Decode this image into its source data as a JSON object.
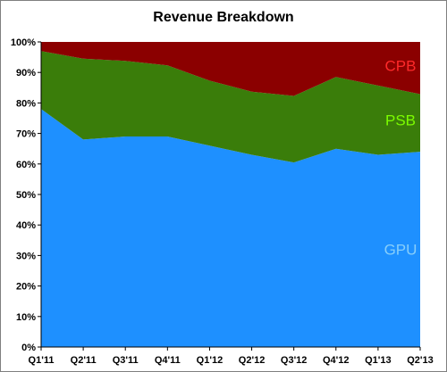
{
  "chart_data": {
    "type": "area",
    "stacked": "percent",
    "title": "Revenue Breakdown",
    "categories": [
      "Q1'11",
      "Q2'11",
      "Q3'11",
      "Q4'11",
      "Q1'12",
      "Q2'12",
      "Q3'12",
      "Q4'12",
      "Q1'13",
      "Q2'13"
    ],
    "series": [
      {
        "name": "GPU",
        "color": "#1e90ff",
        "label_color": "#87cefa",
        "values": [
          78,
          68,
          69,
          69,
          66,
          63,
          60.5,
          65,
          63,
          64
        ]
      },
      {
        "name": "PSB",
        "color": "#3a7d0a",
        "label_color": "#7cfc00",
        "values": [
          19,
          26.5,
          24.8,
          23.3,
          21.3,
          20.7,
          21.8,
          23.5,
          22.7,
          18.9
        ]
      },
      {
        "name": "CPB",
        "color": "#8b0000",
        "label_color": "#ff2a2a",
        "values": [
          3,
          5.5,
          6.2,
          7.7,
          12.7,
          16.3,
          17.7,
          11.5,
          14.3,
          17.1
        ]
      }
    ],
    "ylim": [
      0,
      100
    ],
    "yticks": [
      "0%",
      "10%",
      "20%",
      "30%",
      "40%",
      "50%",
      "60%",
      "70%",
      "80%",
      "90%",
      "100%"
    ],
    "grid": false,
    "legend": "inline labels"
  }
}
